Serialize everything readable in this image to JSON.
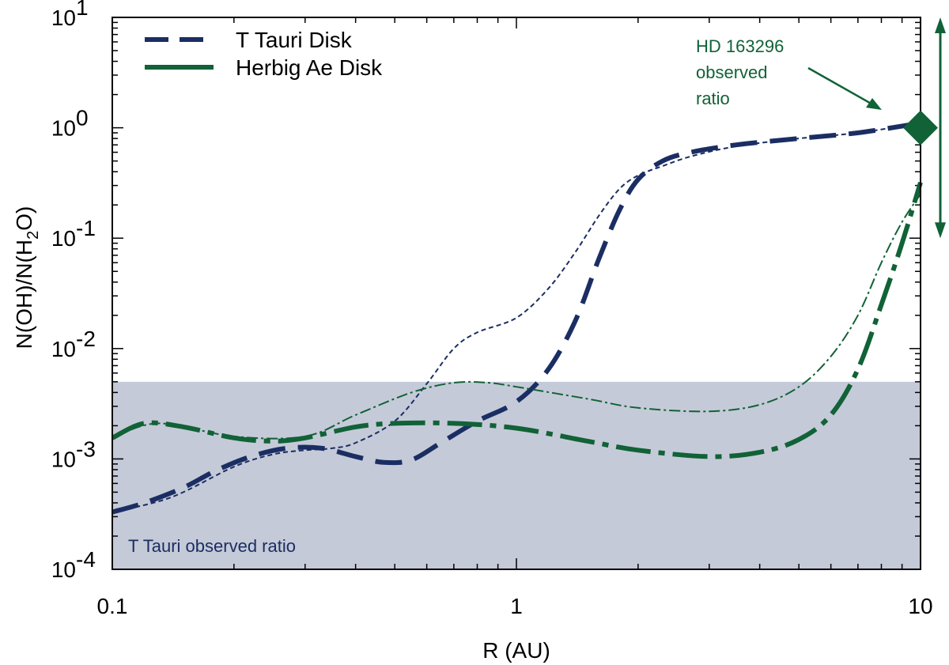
{
  "chart_data": {
    "type": "line",
    "title": "",
    "xlabel": "R (AU)",
    "ylabel": "N(OH)/N(H2O)",
    "ylabel_parts": {
      "before": "N(OH)/N(H",
      "sub": "2",
      "after": "O)"
    },
    "xscale": "log",
    "yscale": "log",
    "xlim": [
      0.1,
      10
    ],
    "ylim": [
      0.0001,
      10
    ],
    "x_ticks": [
      {
        "value": 0.1,
        "label": "0.1"
      },
      {
        "value": 1,
        "label": "1"
      },
      {
        "value": 10,
        "label": "10"
      }
    ],
    "y_ticks": [
      {
        "value": 0.0001,
        "base": "10",
        "exp": "-4"
      },
      {
        "value": 0.001,
        "base": "10",
        "exp": "-3"
      },
      {
        "value": 0.01,
        "base": "10",
        "exp": "-2"
      },
      {
        "value": 0.1,
        "base": "10",
        "exp": "-1"
      },
      {
        "value": 1,
        "base": "10",
        "exp": "0"
      },
      {
        "value": 10,
        "base": "10",
        "exp": "1"
      }
    ],
    "legend": {
      "position": "top-left",
      "entries": [
        {
          "label": "T Tauri Disk",
          "series": "ttauri"
        },
        {
          "label": "Herbig Ae Disk",
          "series": "herbig"
        }
      ]
    },
    "shaded_region": {
      "label": "T Tauri observed ratio",
      "y_range": [
        0.0001,
        0.005
      ],
      "color": "#c5cad8"
    },
    "series": [
      {
        "id": "ttauri",
        "name": "T Tauri Disk",
        "color": "#1b2e63",
        "thick": {
          "x": [
            0.1,
            0.12,
            0.15,
            0.18,
            0.22,
            0.27,
            0.33,
            0.4,
            0.47,
            0.55,
            0.65,
            0.8,
            1.0,
            1.2,
            1.4,
            1.6,
            1.8,
            2.0,
            2.3,
            2.7,
            3.5,
            5,
            7,
            9.5
          ],
          "y": [
            0.00033,
            0.0004,
            0.00055,
            0.00078,
            0.00105,
            0.00125,
            0.00125,
            0.00105,
            0.00093,
            0.00098,
            0.0014,
            0.0022,
            0.0033,
            0.0065,
            0.018,
            0.065,
            0.18,
            0.34,
            0.5,
            0.6,
            0.7,
            0.8,
            0.9,
            1.07
          ]
        },
        "thin": {
          "x": [
            0.1,
            0.14,
            0.2,
            0.25,
            0.3,
            0.35,
            0.4,
            0.5,
            0.6,
            0.7,
            0.8,
            1.0,
            1.2,
            1.4,
            1.6,
            1.8,
            2.0,
            2.3,
            2.7,
            3.5,
            5,
            7,
            9.5
          ],
          "y": [
            0.00033,
            0.00045,
            0.00085,
            0.0011,
            0.0012,
            0.00125,
            0.0014,
            0.0022,
            0.0048,
            0.01,
            0.014,
            0.019,
            0.035,
            0.075,
            0.16,
            0.28,
            0.37,
            0.45,
            0.55,
            0.68,
            0.8,
            0.9,
            1.07
          ]
        }
      },
      {
        "id": "herbig",
        "name": "Herbig Ae Disk",
        "color": "#116237",
        "thick": {
          "x": [
            0.1,
            0.12,
            0.15,
            0.2,
            0.25,
            0.3,
            0.4,
            0.5,
            0.7,
            1.0,
            1.5,
            2.0,
            3.0,
            4.0,
            5.0,
            6.0,
            7.0,
            8.0,
            9.0,
            10.0
          ],
          "y": [
            0.00155,
            0.0021,
            0.00195,
            0.00155,
            0.00145,
            0.00155,
            0.00195,
            0.0021,
            0.0021,
            0.0019,
            0.00145,
            0.0012,
            0.00105,
            0.00115,
            0.0015,
            0.0025,
            0.0065,
            0.025,
            0.09,
            0.32
          ]
        },
        "thin": {
          "x": [
            0.1,
            0.13,
            0.2,
            0.3,
            0.4,
            0.55,
            0.7,
            0.85,
            1.0,
            1.5,
            2.0,
            3.0,
            4.0,
            5.0,
            6.0,
            7.0,
            8.0,
            9.0,
            10.0
          ],
          "y": [
            0.00155,
            0.0021,
            0.0016,
            0.0016,
            0.0025,
            0.004,
            0.0049,
            0.0049,
            0.0045,
            0.0035,
            0.0029,
            0.0027,
            0.0031,
            0.0045,
            0.0085,
            0.02,
            0.06,
            0.14,
            0.25
          ]
        }
      }
    ],
    "observed_point": {
      "label_lines": [
        "HD 163296",
        "observed",
        "ratio"
      ],
      "x": 10,
      "y": 1.0,
      "range_y": [
        0.1,
        10
      ],
      "color": "#116237"
    }
  }
}
